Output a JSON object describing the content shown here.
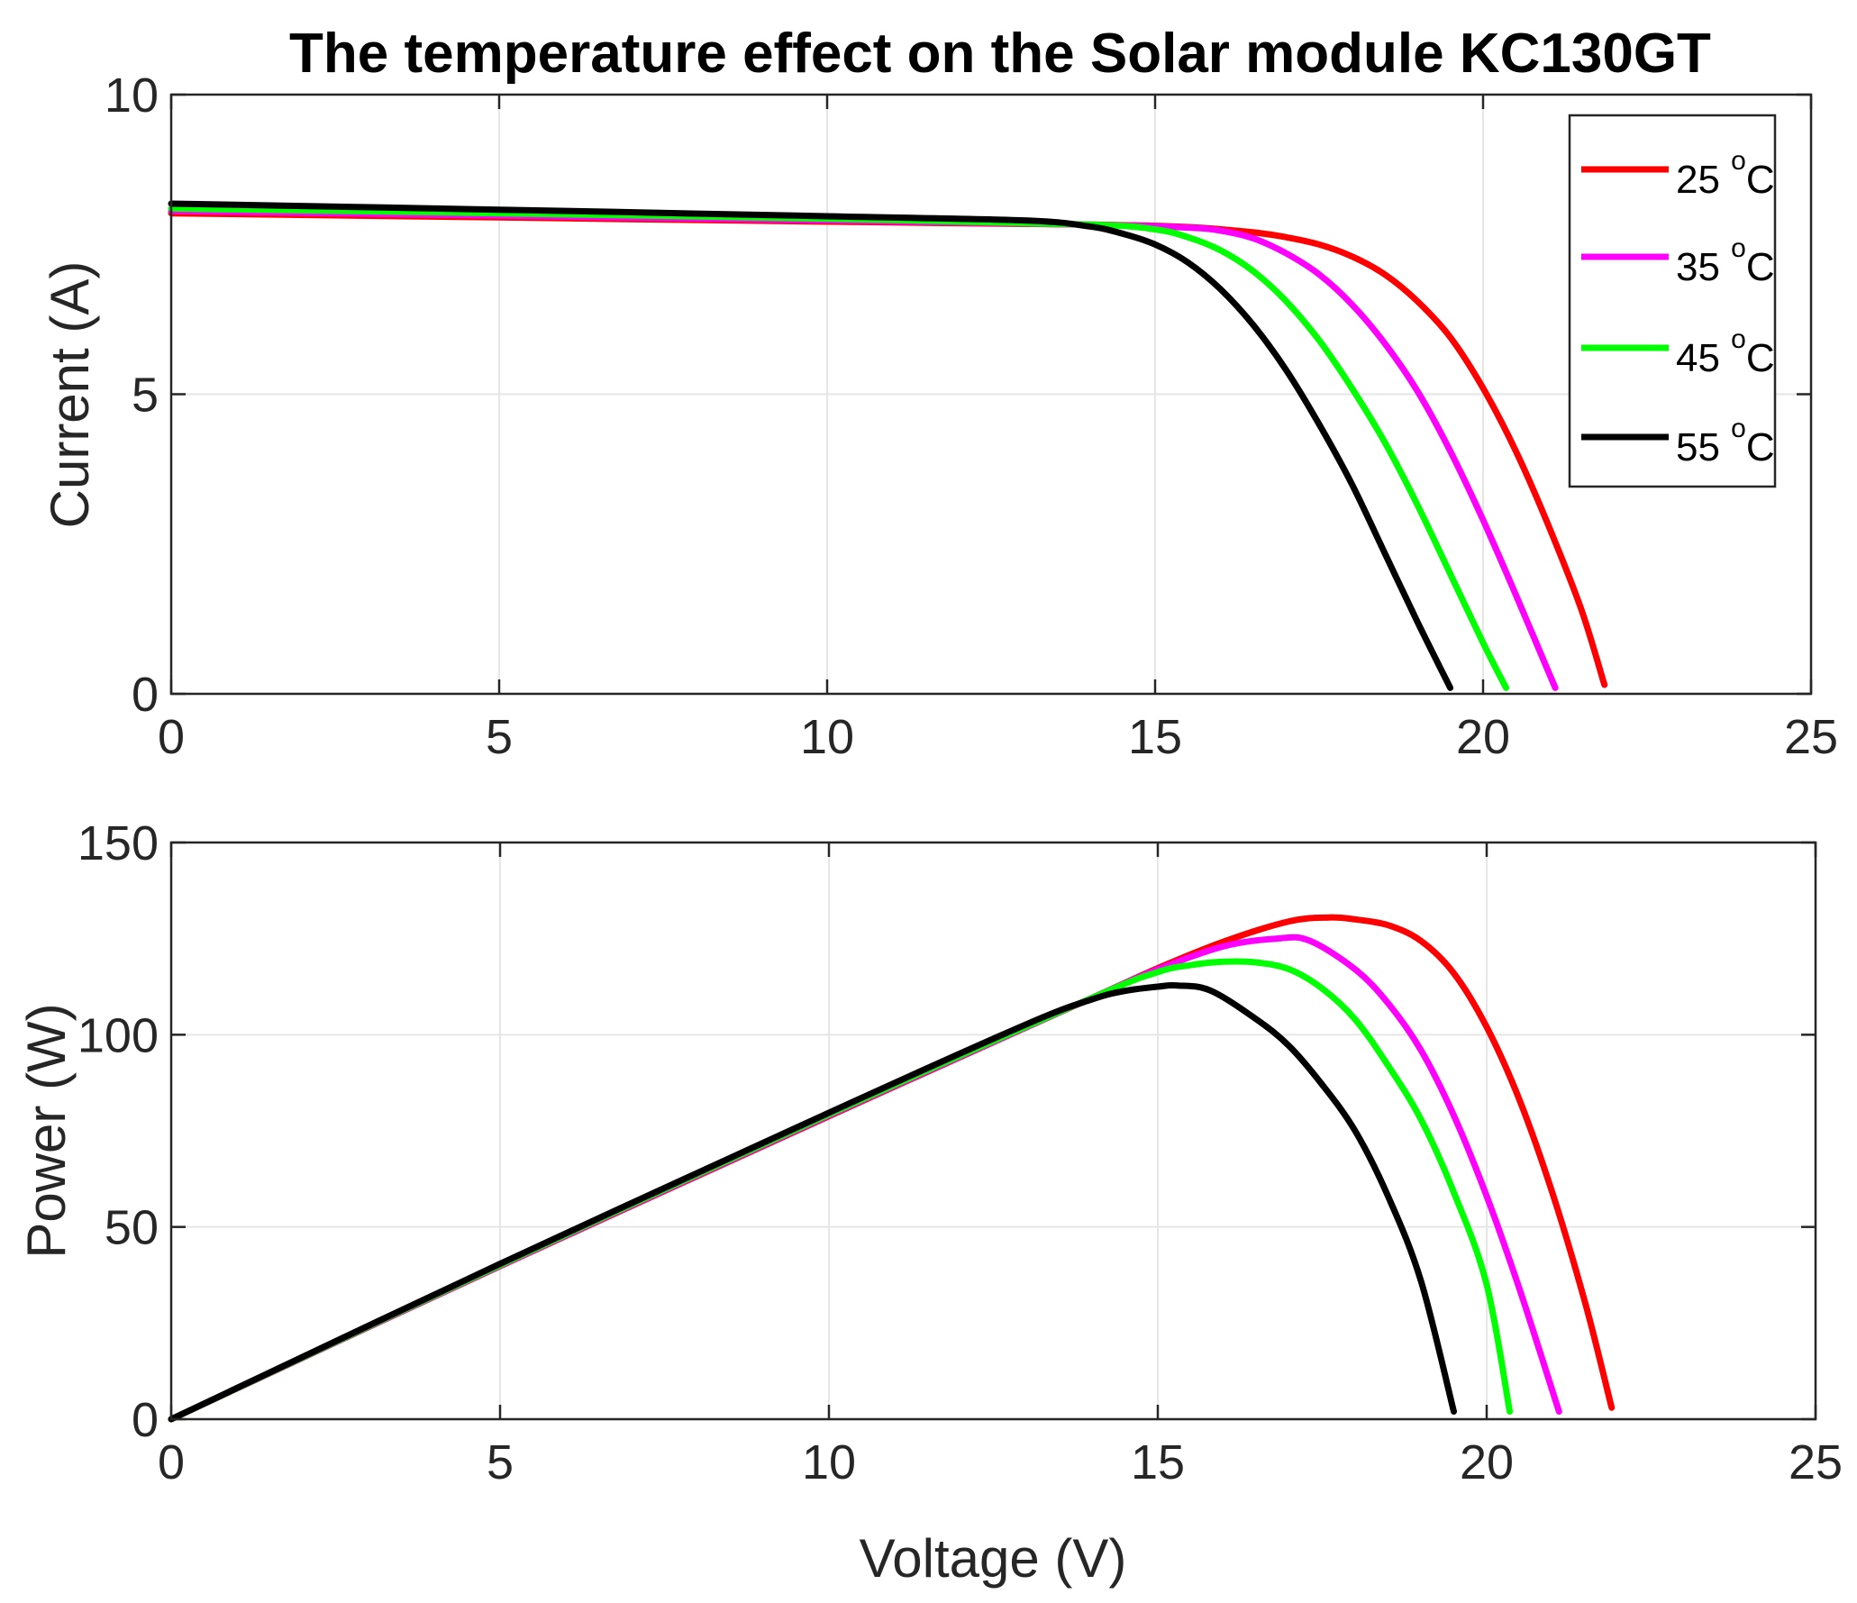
{
  "title": "The temperature effect on the Solar module KC130GT",
  "chart_data": [
    {
      "type": "line",
      "ylabel": "Current (A)",
      "xlabel": "",
      "xlim": [
        0,
        25
      ],
      "ylim": [
        0,
        10
      ],
      "xticks": [
        "0",
        "5",
        "10",
        "15",
        "20",
        "25"
      ],
      "yticks": [
        "0",
        "5",
        "10"
      ],
      "grid": true,
      "legend_position": "top-right",
      "series": [
        {
          "name": "25 °C",
          "label_main": "25 ",
          "label_sup": "o",
          "label_unit": "C",
          "color": "#ff0000",
          "points": [
            [
              0,
              8.02
            ],
            [
              5,
              7.95
            ],
            [
              10,
              7.88
            ],
            [
              14,
              7.83
            ],
            [
              15.5,
              7.79
            ],
            [
              16.5,
              7.7
            ],
            [
              17,
              7.62
            ],
            [
              17.5,
              7.5
            ],
            [
              18,
              7.3
            ],
            [
              18.5,
              7.0
            ],
            [
              19,
              6.55
            ],
            [
              19.5,
              5.95
            ],
            [
              20,
              5.1
            ],
            [
              20.5,
              4.05
            ],
            [
              21,
              2.8
            ],
            [
              21.5,
              1.4
            ],
            [
              21.85,
              0.15
            ]
          ]
        },
        {
          "name": "35 °C",
          "label_main": "35 ",
          "label_sup": "o",
          "label_unit": "C",
          "color": "#ff00ff",
          "points": [
            [
              0,
              8.06
            ],
            [
              5,
              7.98
            ],
            [
              10,
              7.9
            ],
            [
              14,
              7.83
            ],
            [
              15.5,
              7.78
            ],
            [
              16,
              7.73
            ],
            [
              16.5,
              7.6
            ],
            [
              17,
              7.35
            ],
            [
              17.5,
              7.0
            ],
            [
              18,
              6.5
            ],
            [
              18.5,
              5.85
            ],
            [
              19,
              5.05
            ],
            [
              19.5,
              4.05
            ],
            [
              20,
              2.9
            ],
            [
              20.5,
              1.65
            ],
            [
              21.1,
              0.1
            ]
          ]
        },
        {
          "name": "45 °C",
          "label_main": "45 ",
          "label_sup": "o",
          "label_unit": "C",
          "color": "#00ff00",
          "points": [
            [
              0,
              8.1
            ],
            [
              5,
              8.02
            ],
            [
              10,
              7.93
            ],
            [
              14,
              7.83
            ],
            [
              15,
              7.75
            ],
            [
              15.5,
              7.62
            ],
            [
              16,
              7.4
            ],
            [
              16.5,
              7.05
            ],
            [
              17,
              6.55
            ],
            [
              17.5,
              5.9
            ],
            [
              18,
              5.1
            ],
            [
              18.5,
              4.2
            ],
            [
              19,
              3.15
            ],
            [
              19.5,
              2.0
            ],
            [
              20,
              0.85
            ],
            [
              20.35,
              0.1
            ]
          ]
        },
        {
          "name": "55 °C",
          "label_main": "55 ",
          "label_sup": "o",
          "label_unit": "C",
          "color": "#000000",
          "points": [
            [
              0,
              8.18
            ],
            [
              5,
              8.08
            ],
            [
              10,
              7.97
            ],
            [
              13,
              7.9
            ],
            [
              14,
              7.8
            ],
            [
              14.5,
              7.68
            ],
            [
              15,
              7.5
            ],
            [
              15.5,
              7.2
            ],
            [
              16,
              6.75
            ],
            [
              16.5,
              6.15
            ],
            [
              17,
              5.4
            ],
            [
              17.5,
              4.5
            ],
            [
              18,
              3.5
            ],
            [
              18.5,
              2.35
            ],
            [
              19,
              1.2
            ],
            [
              19.5,
              0.1
            ]
          ]
        }
      ]
    },
    {
      "type": "line",
      "ylabel": "Power (W)",
      "xlabel": "Voltage (V)",
      "xlim": [
        0,
        25
      ],
      "ylim": [
        0,
        150
      ],
      "xticks": [
        "0",
        "5",
        "10",
        "15",
        "20",
        "25"
      ],
      "yticks": [
        "0",
        "50",
        "100",
        "150"
      ],
      "grid": true,
      "series": [
        {
          "name": "25 °C",
          "color": "#ff0000",
          "points": [
            [
              0,
              0
            ],
            [
              5,
              39.8
            ],
            [
              10,
              78.8
            ],
            [
              14,
              109.6
            ],
            [
              15,
              117.3
            ],
            [
              16,
              124.2
            ],
            [
              17,
              129.5
            ],
            [
              17.6,
              130.5
            ],
            [
              18,
              130
            ],
            [
              18.5,
              128.5
            ],
            [
              19,
              124.4
            ],
            [
              19.5,
              116
            ],
            [
              20,
              102
            ],
            [
              20.5,
              83
            ],
            [
              21,
              58.8
            ],
            [
              21.5,
              30.1
            ],
            [
              21.9,
              3
            ]
          ]
        },
        {
          "name": "35 °C",
          "color": "#ff00ff",
          "points": [
            [
              0,
              0
            ],
            [
              5,
              39.9
            ],
            [
              10,
              79
            ],
            [
              14,
              109.6
            ],
            [
              15,
              117
            ],
            [
              16,
              123
            ],
            [
              16.8,
              125
            ],
            [
              17.3,
              124.5
            ],
            [
              18,
              117
            ],
            [
              18.5,
              108.2
            ],
            [
              19,
              96
            ],
            [
              19.5,
              79
            ],
            [
              20,
              58
            ],
            [
              20.5,
              33.8
            ],
            [
              21.1,
              2
            ]
          ]
        },
        {
          "name": "45 °C",
          "color": "#00ff00",
          "points": [
            [
              0,
              0
            ],
            [
              5,
              40.1
            ],
            [
              10,
              79.3
            ],
            [
              14,
              109.6
            ],
            [
              15,
              116.3
            ],
            [
              15.5,
              118.1
            ],
            [
              16,
              119
            ],
            [
              16.5,
              118.8
            ],
            [
              17,
              117
            ],
            [
              17.5,
              112
            ],
            [
              18,
              104
            ],
            [
              18.5,
              92
            ],
            [
              19,
              78
            ],
            [
              19.5,
              59
            ],
            [
              20,
              35
            ],
            [
              20.35,
              2
            ]
          ]
        },
        {
          "name": "55 °C",
          "color": "#000000",
          "points": [
            [
              0,
              0
            ],
            [
              5,
              40.4
            ],
            [
              10,
              79.7
            ],
            [
              13,
              102.7
            ],
            [
              14,
              109.2
            ],
            [
              14.5,
              111.4
            ],
            [
              15,
              112.5
            ],
            [
              15.3,
              112.8
            ],
            [
              15.8,
              111.5
            ],
            [
              16.5,
              104
            ],
            [
              17,
              97
            ],
            [
              17.5,
              87
            ],
            [
              18,
              75
            ],
            [
              18.5,
              58
            ],
            [
              19,
              36
            ],
            [
              19.5,
              2
            ]
          ]
        }
      ]
    }
  ]
}
